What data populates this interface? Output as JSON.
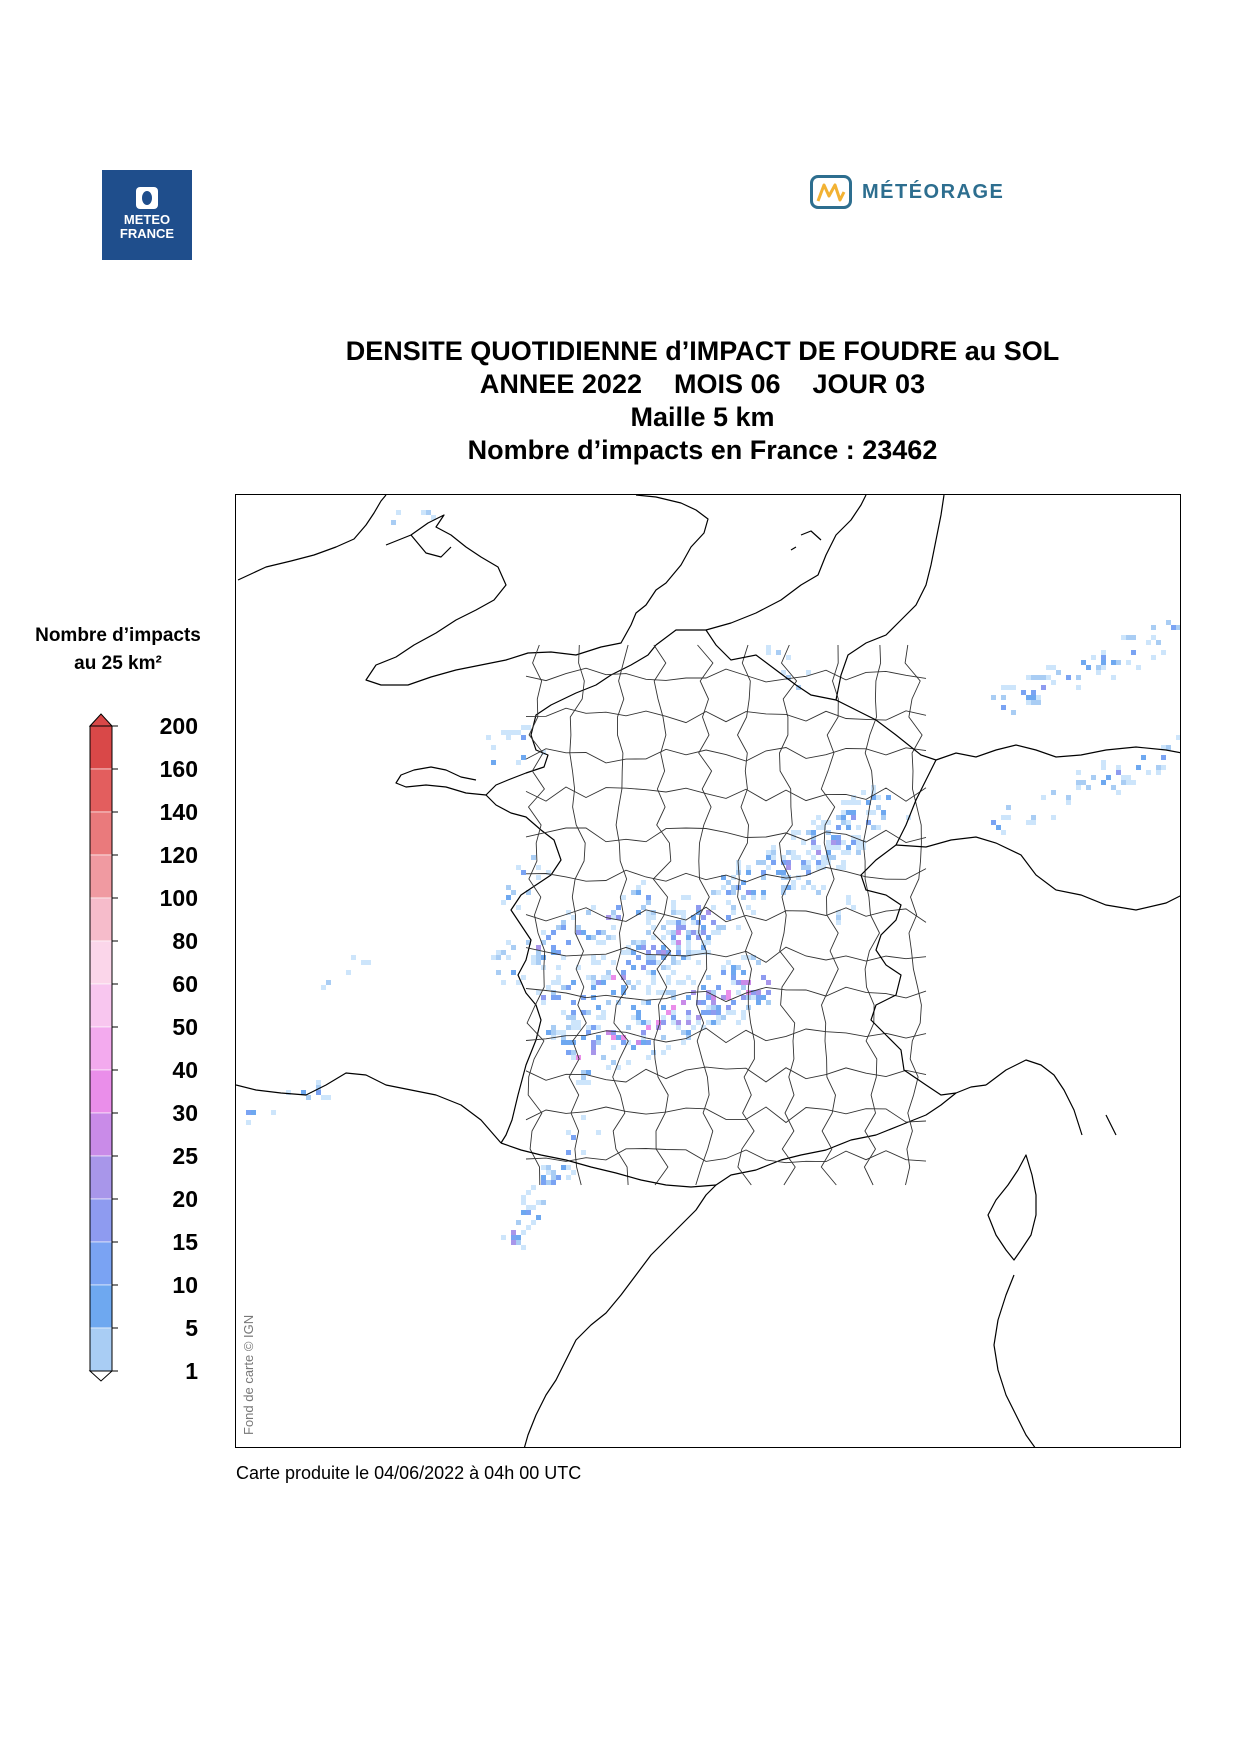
{
  "logos": {
    "left": {
      "name": "METEO FRANCE",
      "lines": [
        "METEO",
        "FRANCE"
      ],
      "color": "#1f4e8c"
    },
    "right": {
      "name": "MÉTÉORAGE",
      "color": "#2d6e8f"
    }
  },
  "title": {
    "line1": "DENSITE QUOTIDIENNE d’IMPACT DE FOUDRE au SOL",
    "year": "ANNEE 2022",
    "month": "MOIS 06",
    "day": "JOUR 03",
    "line3": "Maille 5 km",
    "line4": "Nombre d’impacts en France : 23462"
  },
  "legend": {
    "title_line1": "Nombre d’impacts",
    "title_line2": "au 25 km²",
    "levels": [
      {
        "label": "200",
        "color": "#d94848"
      },
      {
        "label": "160",
        "color": "#e35e5e"
      },
      {
        "label": "140",
        "color": "#ea7a7c"
      },
      {
        "label": "120",
        "color": "#f09aa1"
      },
      {
        "label": "100",
        "color": "#f6bccb"
      },
      {
        "label": "80",
        "color": "#fbd6ea"
      },
      {
        "label": "60",
        "color": "#f8c6ef"
      },
      {
        "label": "50",
        "color": "#f3aaee"
      },
      {
        "label": "40",
        "color": "#ea8eea"
      },
      {
        "label": "30",
        "color": "#c98be8"
      },
      {
        "label": "25",
        "color": "#a896ea"
      },
      {
        "label": "20",
        "color": "#8e9bf0"
      },
      {
        "label": "15",
        "color": "#7aa3f3"
      },
      {
        "label": "10",
        "color": "#6ea8f0"
      },
      {
        "label": "5",
        "color": "#a9cdf4"
      },
      {
        "label": "1",
        "color": "#cde5fb"
      }
    ]
  },
  "map": {
    "credit": "Fond de carte © IGN",
    "border_color": "#333333",
    "coast_color": "#000000"
  },
  "footer": {
    "produced": "Carte produite le 04/06/2022 à 04h 00 UTC"
  }
}
